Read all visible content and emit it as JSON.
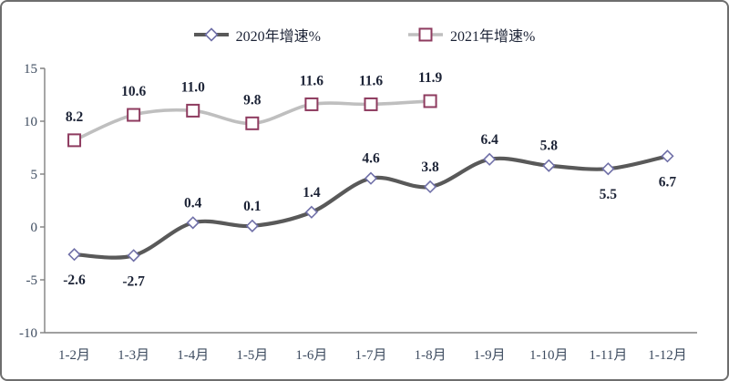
{
  "chart_data": {
    "type": "line",
    "title": "",
    "xlabel": "",
    "ylabel": "",
    "categories": [
      "1-2月",
      "1-3月",
      "1-4月",
      "1-5月",
      "1-6月",
      "1-7月",
      "1-8月",
      "1-9月",
      "1-10月",
      "1-11月",
      "1-12月"
    ],
    "series": [
      {
        "name": "2020年增速%",
        "values": [
          -2.6,
          -2.7,
          0.4,
          0.1,
          1.4,
          4.6,
          3.8,
          6.4,
          5.8,
          5.5,
          6.7
        ],
        "labels": [
          "-2.6",
          "-2.7",
          "0.4",
          "0.1",
          "1.4",
          "4.6",
          "3.8",
          "6.4",
          "5.8",
          "5.5",
          "6.7"
        ],
        "label_positions": [
          "below",
          "below",
          "above",
          "above",
          "above",
          "above",
          "above",
          "above",
          "above",
          "below",
          "below"
        ],
        "marker": "diamond",
        "line_color": "#595959",
        "marker_color": "#7070a8"
      },
      {
        "name": "2021年增速%",
        "values": [
          8.2,
          10.6,
          11.0,
          9.8,
          11.6,
          11.6,
          11.9
        ],
        "labels": [
          "8.2",
          "10.6",
          "11.0",
          "9.8",
          "11.6",
          "11.6",
          "11.9"
        ],
        "label_positions": [
          "above",
          "above",
          "above",
          "above",
          "above",
          "above",
          "above"
        ],
        "marker": "square",
        "line_color": "#bfbfbf",
        "marker_color": "#8e3b5f"
      }
    ],
    "ylim": [
      -10,
      15
    ],
    "yticks": [
      "15",
      "10",
      "5",
      "0",
      "-5",
      "-10"
    ],
    "ytick_values": [
      15,
      10,
      5,
      0,
      -5,
      -10
    ],
    "grid": false,
    "legend_position": "top",
    "colors": {
      "axis": "#808080",
      "tick_labels": "#3e4c60",
      "data_labels": "#1c2336",
      "background": "#ffffff",
      "panel_border": "#6e6e6e"
    }
  }
}
